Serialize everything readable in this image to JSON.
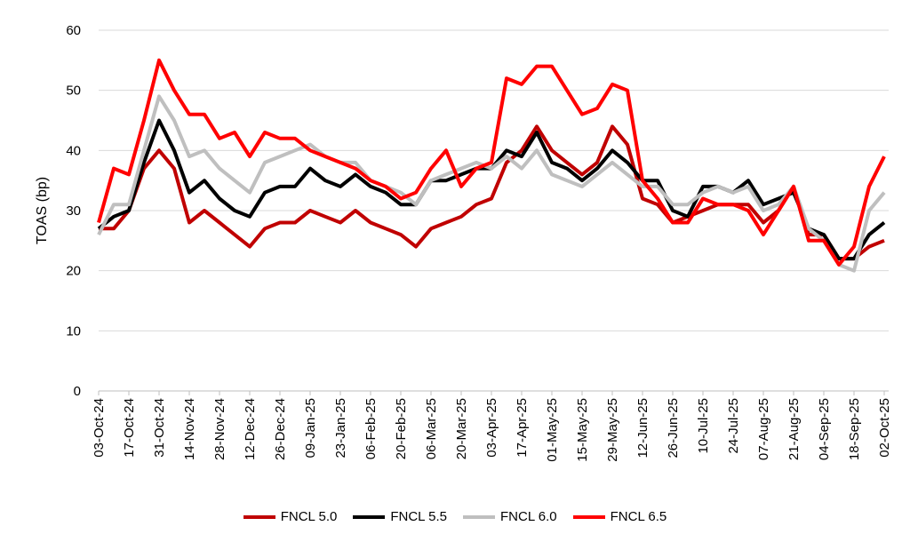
{
  "chart_data": {
    "type": "line",
    "title": "",
    "xlabel": "",
    "ylabel": "TOAS (bp)",
    "ylim": [
      0,
      60
    ],
    "yticks": [
      0,
      10,
      20,
      30,
      40,
      50,
      60
    ],
    "grid": "horizontal",
    "legend_position": "bottom",
    "x_start": "03-Oct-24",
    "x_end": "02-Oct-25",
    "x_step_days": 7,
    "xticks": [
      "03-Oct-24",
      "17-Oct-24",
      "31-Oct-24",
      "14-Nov-24",
      "28-Nov-24",
      "12-Dec-24",
      "26-Dec-24",
      "09-Jan-25",
      "23-Jan-25",
      "06-Feb-25",
      "20-Feb-25",
      "06-Mar-25",
      "20-Mar-25",
      "03-Apr-25",
      "17-Apr-25",
      "01-May-25",
      "15-May-25",
      "29-May-25",
      "12-Jun-25",
      "26-Jun-25",
      "10-Jul-25",
      "24-Jul-25",
      "07-Aug-25",
      "21-Aug-25",
      "04-Sep-25",
      "18-Sep-25",
      "02-Oct-25"
    ],
    "series": [
      {
        "name": "FNCL 5.0",
        "color": "#C00000",
        "values": [
          27,
          27,
          30,
          37,
          40,
          37,
          28,
          30,
          28,
          26,
          24,
          27,
          28,
          28,
          30,
          29,
          28,
          30,
          28,
          27,
          26,
          24,
          27,
          28,
          29,
          31,
          32,
          38,
          40,
          44,
          40,
          38,
          36,
          38,
          44,
          41,
          32,
          31,
          28,
          29,
          30,
          31,
          31,
          31,
          28,
          30,
          34,
          26,
          26,
          22,
          22,
          24,
          25
        ]
      },
      {
        "name": "FNCL 5.5",
        "color": "#000000",
        "values": [
          27,
          29,
          30,
          38,
          45,
          40,
          33,
          35,
          32,
          30,
          29,
          33,
          34,
          34,
          37,
          35,
          34,
          36,
          34,
          33,
          31,
          31,
          35,
          35,
          36,
          37,
          37,
          40,
          39,
          43,
          38,
          37,
          35,
          37,
          40,
          38,
          35,
          35,
          30,
          29,
          34,
          34,
          33,
          35,
          31,
          32,
          33,
          27,
          26,
          22,
          22,
          26,
          28
        ]
      },
      {
        "name": "FNCL 6.0",
        "color": "#BFBFBF",
        "values": [
          26,
          31,
          31,
          40,
          49,
          45,
          39,
          40,
          37,
          35,
          33,
          38,
          39,
          40,
          41,
          39,
          38,
          38,
          35,
          34,
          33,
          31,
          35,
          36,
          37,
          38,
          37,
          39,
          37,
          40,
          36,
          35,
          34,
          36,
          38,
          36,
          34,
          34,
          31,
          31,
          33,
          34,
          33,
          34,
          30,
          31,
          34,
          27,
          25,
          21,
          20,
          30,
          33
        ]
      },
      {
        "name": "FNCL 6.5",
        "color": "#FF0000",
        "values": [
          28,
          37,
          36,
          45,
          55,
          50,
          46,
          46,
          42,
          43,
          39,
          43,
          42,
          42,
          40,
          39,
          38,
          37,
          35,
          34,
          32,
          33,
          37,
          40,
          34,
          37,
          38,
          52,
          51,
          54,
          54,
          50,
          46,
          47,
          51,
          50,
          35,
          32,
          28,
          28,
          32,
          31,
          31,
          30,
          26,
          30,
          34,
          25,
          25,
          21,
          24,
          34,
          39
        ]
      }
    ]
  }
}
